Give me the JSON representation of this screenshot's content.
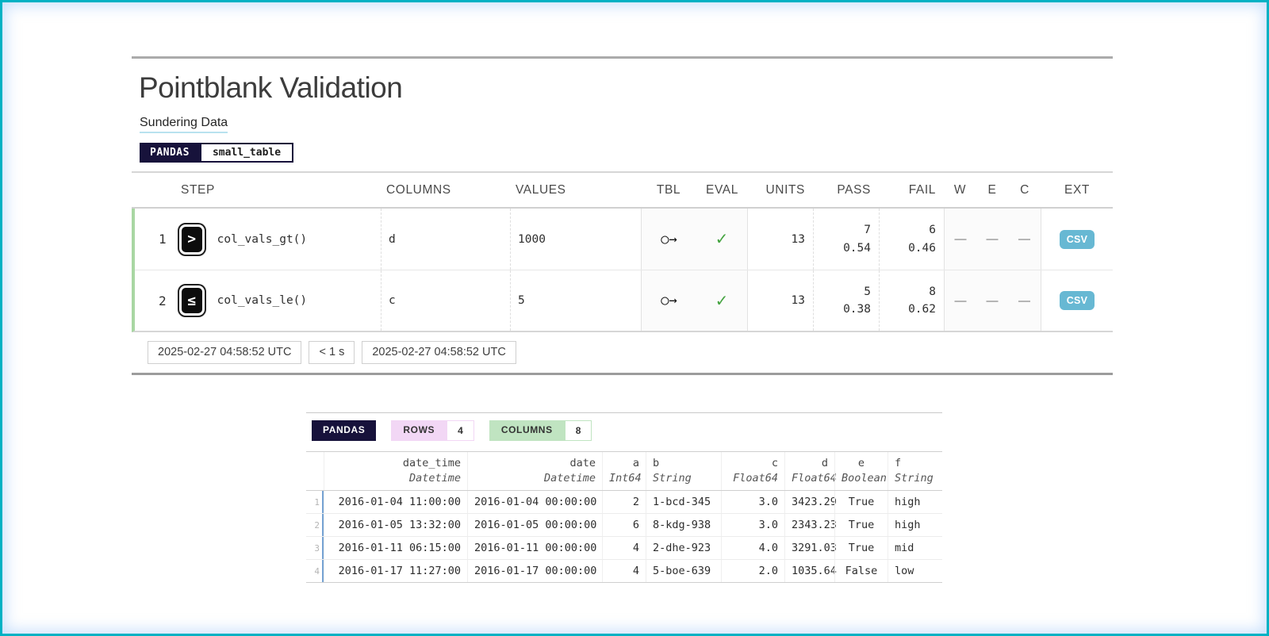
{
  "report": {
    "title": "Pointblank Validation",
    "subtitle": "Sundering Data",
    "engine_badge": "PANDAS",
    "table_badge": "small_table",
    "columns": {
      "step": "STEP",
      "columns": "COLUMNS",
      "values": "VALUES",
      "tbl": "TBL",
      "eval": "EVAL",
      "units": "UNITS",
      "pass": "PASS",
      "fail": "FAIL",
      "w": "W",
      "e": "E",
      "c": "C",
      "ext": "EXT"
    },
    "rows": [
      {
        "step": "1",
        "icon": ">",
        "fn": "col_vals_gt()",
        "columns": "d",
        "values": "1000",
        "tbl_icon": "○→",
        "eval_icon": "✓",
        "units": "13",
        "pass_n": "7",
        "pass_f": "0.54",
        "fail_n": "6",
        "fail_f": "0.46",
        "w": "—",
        "e": "—",
        "c": "—",
        "ext": "CSV"
      },
      {
        "step": "2",
        "icon": "≤",
        "fn": "col_vals_le()",
        "columns": "c",
        "values": "5",
        "tbl_icon": "○→",
        "eval_icon": "✓",
        "units": "13",
        "pass_n": "5",
        "pass_f": "0.38",
        "fail_n": "8",
        "fail_f": "0.62",
        "w": "—",
        "e": "—",
        "c": "—",
        "ext": "CSV"
      }
    ],
    "footer": {
      "start_time": "2025-02-27 04:58:52 UTC",
      "duration": "< 1 s",
      "end_time": "2025-02-27 04:58:52 UTC"
    }
  },
  "preview": {
    "engine_badge": "PANDAS",
    "rows_label": "ROWS",
    "rows_value": "4",
    "columns_label": "COLUMNS",
    "columns_value": "8",
    "headers": [
      {
        "name": "date_time",
        "type": "Datetime"
      },
      {
        "name": "date",
        "type": "Datetime"
      },
      {
        "name": "a",
        "type": "Int64"
      },
      {
        "name": "b",
        "type": "String"
      },
      {
        "name": "c",
        "type": "Float64"
      },
      {
        "name": "d",
        "type": "Float64"
      },
      {
        "name": "e",
        "type": "Boolean"
      },
      {
        "name": "f",
        "type": "String"
      }
    ],
    "rows": [
      {
        "num": "1",
        "cells": [
          "2016-01-04 11:00:00",
          "2016-01-04 00:00:00",
          "2",
          "1-bcd-345",
          "3.0",
          "3423.29",
          "True",
          "high"
        ]
      },
      {
        "num": "2",
        "cells": [
          "2016-01-05 13:32:00",
          "2016-01-05 00:00:00",
          "6",
          "8-kdg-938",
          "3.0",
          "2343.23",
          "True",
          "high"
        ]
      },
      {
        "num": "3",
        "cells": [
          "2016-01-11 06:15:00",
          "2016-01-11 00:00:00",
          "4",
          "2-dhe-923",
          "4.0",
          "3291.03",
          "True",
          "mid"
        ]
      },
      {
        "num": "4",
        "cells": [
          "2016-01-17 11:27:00",
          "2016-01-17 00:00:00",
          "4",
          "5-boe-639",
          "2.0",
          "1035.64",
          "False",
          "low"
        ]
      }
    ]
  }
}
